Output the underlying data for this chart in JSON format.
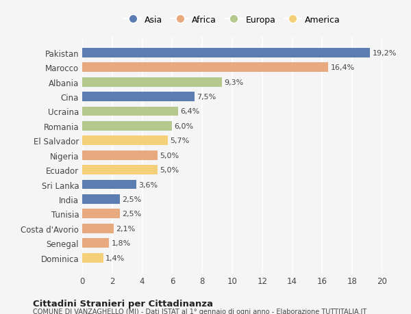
{
  "countries": [
    "Pakistan",
    "Marocco",
    "Albania",
    "Cina",
    "Ucraina",
    "Romania",
    "El Salvador",
    "Nigeria",
    "Ecuador",
    "Sri Lanka",
    "India",
    "Tunisia",
    "Costa d'Avorio",
    "Senegal",
    "Dominica"
  ],
  "values": [
    19.2,
    16.4,
    9.3,
    7.5,
    6.4,
    6.0,
    5.7,
    5.0,
    5.0,
    3.6,
    2.5,
    2.5,
    2.1,
    1.8,
    1.4
  ],
  "labels": [
    "19,2%",
    "16,4%",
    "9,3%",
    "7,5%",
    "6,4%",
    "6,0%",
    "5,7%",
    "5,0%",
    "5,0%",
    "3,6%",
    "2,5%",
    "2,5%",
    "2,1%",
    "1,8%",
    "1,4%"
  ],
  "continents": [
    "Asia",
    "Africa",
    "Europa",
    "Asia",
    "Europa",
    "Europa",
    "America",
    "Africa",
    "America",
    "Asia",
    "Asia",
    "Africa",
    "Africa",
    "Africa",
    "America"
  ],
  "colors": {
    "Asia": "#5b7db1",
    "Africa": "#e8a97e",
    "Europa": "#b5c98e",
    "America": "#f5d07a"
  },
  "legend_order": [
    "Asia",
    "Africa",
    "Europa",
    "America"
  ],
  "xlim": [
    0,
    20
  ],
  "xticks": [
    0,
    2,
    4,
    6,
    8,
    10,
    12,
    14,
    16,
    18,
    20
  ],
  "title": "Cittadini Stranieri per Cittadinanza",
  "subtitle": "COMUNE DI VANZAGHELLO (MI) - Dati ISTAT al 1° gennaio di ogni anno - Elaborazione TUTTITALIA.IT",
  "background_color": "#f5f5f5",
  "grid_color": "#ffffff",
  "bar_height": 0.65
}
